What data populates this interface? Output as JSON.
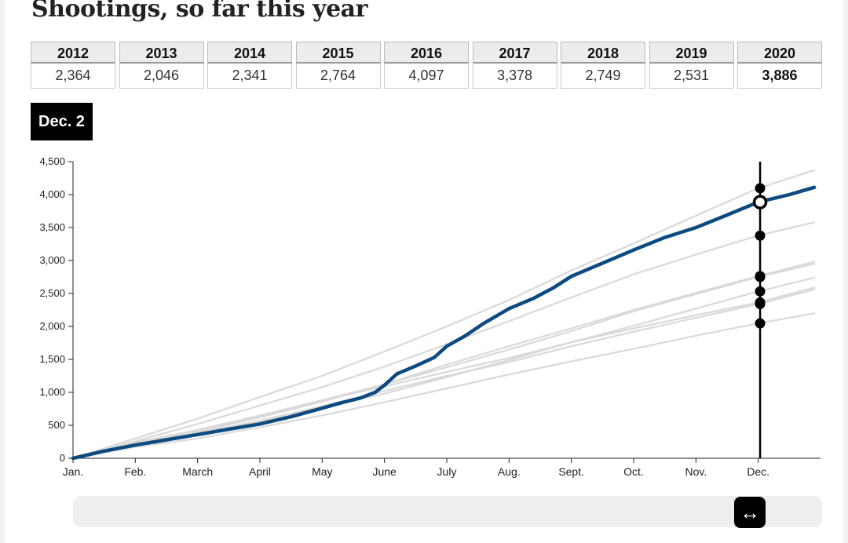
{
  "title": "Shootings, so far this year",
  "current_date_label": "Dec. 2",
  "year_table": [
    {
      "year": "2012",
      "value": "2,364"
    },
    {
      "year": "2013",
      "value": "2,046"
    },
    {
      "year": "2014",
      "value": "2,341"
    },
    {
      "year": "2015",
      "value": "2,764"
    },
    {
      "year": "2016",
      "value": "4,097"
    },
    {
      "year": "2017",
      "value": "3,378"
    },
    {
      "year": "2018",
      "value": "2,749"
    },
    {
      "year": "2019",
      "value": "2,531"
    },
    {
      "year": "2020",
      "value": "3,886"
    }
  ],
  "slider": {
    "handle_icon": "left-right-arrow-icon",
    "position_fraction": 0.9
  },
  "chart_data": {
    "type": "line",
    "title": "",
    "xlabel": "",
    "ylabel": "",
    "ylim": [
      0,
      4500
    ],
    "xlim": [
      0,
      12
    ],
    "y_ticks": [
      0,
      500,
      1000,
      1500,
      2000,
      2500,
      3000,
      3500,
      4000,
      4500
    ],
    "y_tick_labels": [
      "0",
      "500",
      "1,000",
      "1,500",
      "2,000",
      "2,500",
      "3,000",
      "3,500",
      "4,000",
      "4,500"
    ],
    "x_ticks": [
      0,
      1,
      2,
      3,
      4,
      5,
      6,
      7,
      8,
      9,
      10,
      11
    ],
    "x_tick_labels": [
      "Jan.",
      "Feb.",
      "March",
      "April",
      "May",
      "June",
      "July",
      "Aug.",
      "Sept.",
      "Oct.",
      "Nov.",
      "Dec."
    ],
    "grid": false,
    "current_x": 11.03,
    "highlight_color": "#0d4a80",
    "other_color": "#d9d9d9",
    "marker_color": "#000000",
    "series": [
      {
        "label": "2012",
        "highlight": false,
        "x": [
          0,
          1,
          2,
          3,
          4,
          5,
          6,
          7,
          8,
          9,
          10,
          11,
          11.9
        ],
        "y": [
          0,
          240,
          430,
          650,
          880,
          1090,
          1310,
          1520,
          1760,
          1970,
          2170,
          2364,
          2590
        ]
      },
      {
        "label": "2013",
        "highlight": false,
        "x": [
          0,
          1,
          2,
          3,
          4,
          5,
          6,
          7,
          8,
          9,
          10,
          11,
          11.9
        ],
        "y": [
          0,
          170,
          300,
          470,
          650,
          850,
          1060,
          1270,
          1470,
          1660,
          1860,
          2046,
          2200
        ]
      },
      {
        "label": "2014",
        "highlight": false,
        "x": [
          0,
          1,
          2,
          3,
          4,
          5,
          6,
          7,
          8,
          9,
          10,
          11,
          11.9
        ],
        "y": [
          0,
          200,
          380,
          570,
          790,
          1020,
          1250,
          1460,
          1700,
          1920,
          2130,
          2341,
          2560
        ]
      },
      {
        "label": "2015",
        "highlight": false,
        "x": [
          0,
          1,
          2,
          3,
          4,
          5,
          6,
          7,
          8,
          9,
          10,
          11,
          11.9
        ],
        "y": [
          0,
          210,
          400,
          620,
          860,
          1120,
          1420,
          1700,
          1970,
          2250,
          2510,
          2764,
          2980
        ]
      },
      {
        "label": "2016",
        "highlight": false,
        "x": [
          0,
          1,
          2,
          3,
          4,
          5,
          6,
          7,
          8,
          9,
          10,
          11,
          11.9
        ],
        "y": [
          0,
          300,
          600,
          930,
          1250,
          1620,
          2000,
          2400,
          2850,
          3260,
          3680,
          4097,
          4370
        ]
      },
      {
        "label": "2017",
        "highlight": false,
        "x": [
          0,
          1,
          2,
          3,
          4,
          5,
          6,
          7,
          8,
          9,
          10,
          11,
          11.9
        ],
        "y": [
          0,
          260,
          520,
          800,
          1080,
          1390,
          1730,
          2080,
          2440,
          2790,
          3090,
          3378,
          3580
        ]
      },
      {
        "label": "2018",
        "highlight": false,
        "x": [
          0,
          1,
          2,
          3,
          4,
          5,
          6,
          7,
          8,
          9,
          10,
          11,
          11.9
        ],
        "y": [
          0,
          220,
          420,
          640,
          880,
          1120,
          1380,
          1650,
          1930,
          2230,
          2490,
          2749,
          2950
        ]
      },
      {
        "label": "2019",
        "highlight": false,
        "x": [
          0,
          1,
          2,
          3,
          4,
          5,
          6,
          7,
          8,
          9,
          10,
          11,
          11.9
        ],
        "y": [
          0,
          190,
          370,
          560,
          770,
          980,
          1230,
          1490,
          1760,
          2010,
          2270,
          2531,
          2740
        ]
      },
      {
        "label": "2020",
        "highlight": true,
        "x": [
          0,
          0.5,
          1,
          1.5,
          2,
          2.5,
          3,
          3.5,
          4,
          4.3,
          4.6,
          4.85,
          5,
          5.2,
          5.5,
          5.8,
          6,
          6.3,
          6.6,
          7,
          7.4,
          7.7,
          8,
          8.5,
          9,
          9.5,
          10,
          10.5,
          11,
          11.5,
          11.9
        ],
        "y": [
          0,
          110,
          200,
          280,
          360,
          440,
          520,
          630,
          760,
          840,
          910,
          1000,
          1110,
          1280,
          1400,
          1530,
          1700,
          1860,
          2050,
          2270,
          2430,
          2580,
          2760,
          2960,
          3160,
          3350,
          3500,
          3690,
          3886,
          4000,
          4110
        ]
      }
    ],
    "markers": [
      {
        "year": "2016",
        "value": 4097
      },
      {
        "year": "2020",
        "value": 3886,
        "hollow": true
      },
      {
        "year": "2017",
        "value": 3378
      },
      {
        "year": "2015",
        "value": 2764
      },
      {
        "year": "2018",
        "value": 2749
      },
      {
        "year": "2019",
        "value": 2531
      },
      {
        "year": "2012",
        "value": 2364
      },
      {
        "year": "2014",
        "value": 2341
      },
      {
        "year": "2013",
        "value": 2046
      }
    ]
  }
}
